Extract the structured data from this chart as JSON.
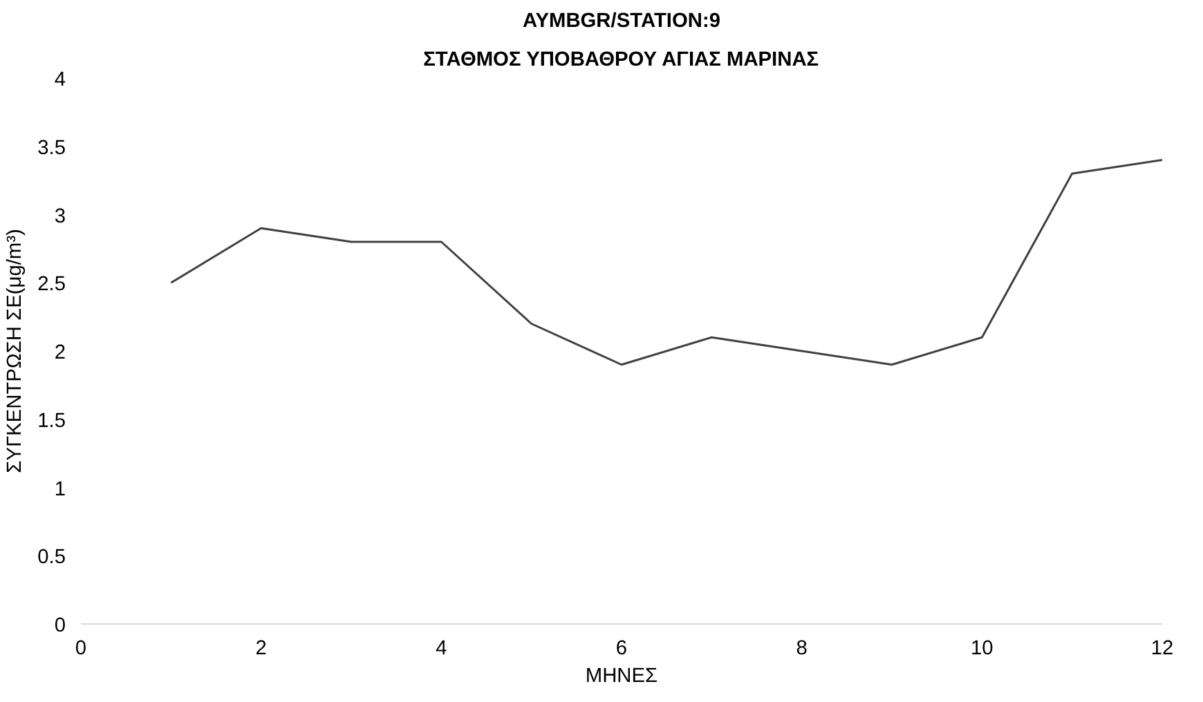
{
  "chart_data": {
    "type": "line",
    "title": "AYMBGR/STATION:9",
    "subtitle": "ΣΤΑΘΜΟΣ ΥΠΟΒΑΘΡΟΥ ΑΓΙΑΣ ΜΑΡΙΝΑΣ",
    "xlabel": "ΜΗΝΕΣ",
    "ylabel": "ΣΥΓΚΕΝΤΡΩΣΗ ΣΕ(μg/m³)",
    "x": [
      1,
      2,
      3,
      4,
      5,
      6,
      7,
      8,
      9,
      10,
      11,
      12
    ],
    "series": [
      {
        "color": "#404040",
        "values": [
          2.5,
          2.9,
          2.8,
          2.8,
          2.2,
          1.9,
          2.1,
          2.0,
          1.9,
          2.1,
          3.3,
          3.4
        ]
      }
    ],
    "xlim": [
      0,
      12
    ],
    "xticks": [
      0,
      2,
      4,
      6,
      8,
      10,
      12
    ],
    "ylim": [
      0,
      4
    ],
    "yticks": [
      0,
      0.5,
      1,
      1.5,
      2,
      2.5,
      3,
      3.5,
      4
    ],
    "grid": false,
    "marker": "none",
    "line_style": "solid"
  }
}
